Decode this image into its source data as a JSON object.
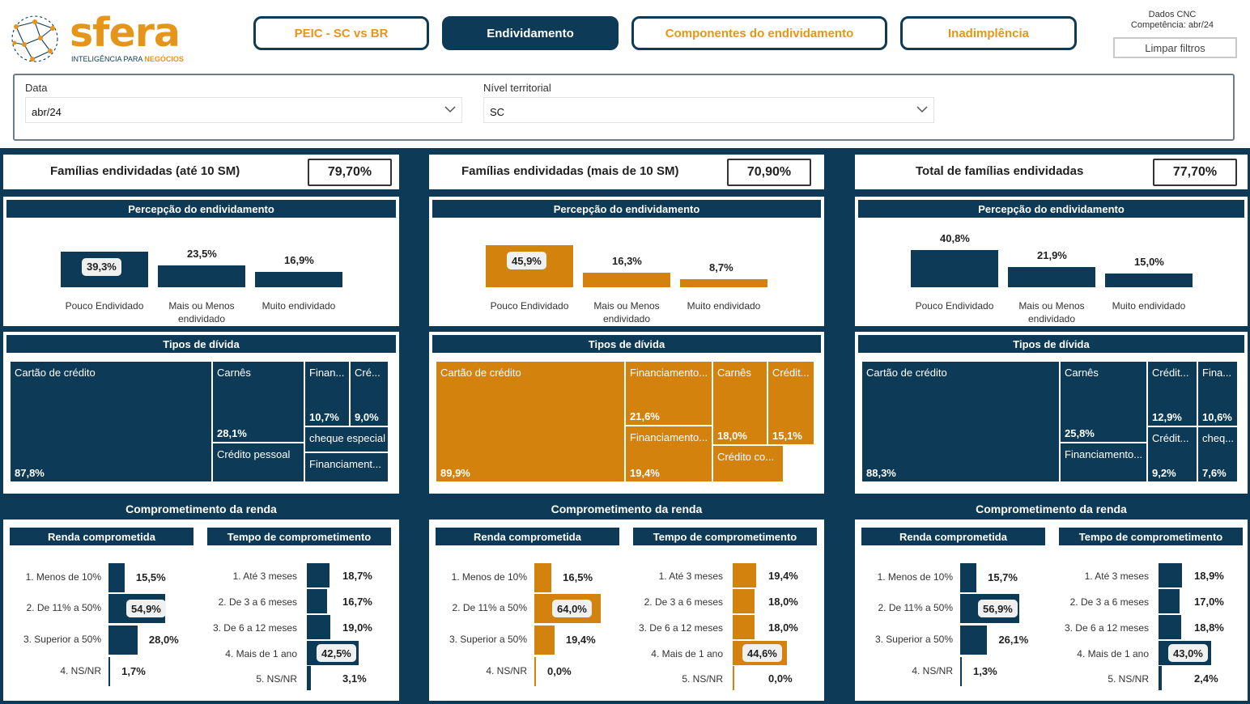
{
  "brand": {
    "name": "sfera",
    "tagline_a": "INTELIGÊNCIA PARA ",
    "tagline_b": "NEGÓCIOS"
  },
  "nav": [
    "PEIC - SC vs BR",
    "Endividamento",
    "Componentes do endividamento",
    "Inadimplência"
  ],
  "cnc": {
    "source": "Dados CNC",
    "competencia_label": "Competência:",
    "competencia_value": "abr/24"
  },
  "clear_label": "Limpar filtros",
  "filters": {
    "data_label": "Data",
    "data_value": "abr/24",
    "nivel_label": "Nível territorial",
    "nivel_value": "SC"
  },
  "colors": {
    "navy": "#0d3a56",
    "orange": "#d4820e"
  },
  "panels": [
    {
      "kpi_title": "Famílias endividadas (até 10 SM)",
      "kpi_value": "79,70%",
      "perc_title": "Percepção do endividamento",
      "perc": [
        {
          "label": "Pouco Endividado",
          "value": "39,3%",
          "num": 39.3
        },
        {
          "label": "Mais ou Menos endividado",
          "value": "23,5%",
          "num": 23.5
        },
        {
          "label": "Muito endividado",
          "value": "16,9%",
          "num": 16.9
        }
      ],
      "types_title": "Tipos de dívida",
      "types": [
        {
          "name": "Cartão de crédito",
          "value": "87,8%"
        },
        {
          "name": "Carnês",
          "value": "28,1%"
        },
        {
          "name": "Finan...",
          "value": "10,7%"
        },
        {
          "name": "Cré...",
          "value": "9,0%"
        },
        {
          "name": "cheque especial",
          "value": ""
        },
        {
          "name": "Crédito pessoal",
          "value": ""
        },
        {
          "name": "Financiament...",
          "value": ""
        }
      ],
      "comp_title": "Comprometimento da renda",
      "renda_title": "Renda comprometida",
      "tempo_title": "Tempo de comprometimento",
      "renda": [
        {
          "label": "1. Menos de 10%",
          "value": "15,5%",
          "num": 15.5
        },
        {
          "label": "2. De 11% a 50%",
          "value": "54,9%",
          "num": 54.9
        },
        {
          "label": "3. Superior a 50%",
          "value": "28,0%",
          "num": 28.0
        },
        {
          "label": "4. NS/NR",
          "value": "1,7%",
          "num": 1.7
        }
      ],
      "tempo": [
        {
          "label": "1. Até 3 meses",
          "value": "18,7%",
          "num": 18.7
        },
        {
          "label": "2. De 3 a 6 meses",
          "value": "16,7%",
          "num": 16.7
        },
        {
          "label": "3. De 6 a 12 meses",
          "value": "19,0%",
          "num": 19.0
        },
        {
          "label": "4. Mais de 1 ano",
          "value": "42,5%",
          "num": 42.5
        },
        {
          "label": "5. NS/NR",
          "value": "3,1%",
          "num": 3.1
        }
      ]
    },
    {
      "kpi_title": "Famílias endividadas (mais de 10 SM)",
      "kpi_value": "70,90%",
      "perc_title": "Percepção do endividamento",
      "perc": [
        {
          "label": "Pouco Endividado",
          "value": "45,9%",
          "num": 45.9
        },
        {
          "label": "Mais ou Menos endividado",
          "value": "16,3%",
          "num": 16.3
        },
        {
          "label": "Muito endividado",
          "value": "8,7%",
          "num": 8.7
        }
      ],
      "types_title": "Tipos de dívida",
      "types": [
        {
          "name": "Cartão de crédito",
          "value": "89,9%"
        },
        {
          "name": "Financiamento...",
          "value": "21,6%"
        },
        {
          "name": "Financiamento...",
          "value": "19,4%"
        },
        {
          "name": "Carnês",
          "value": "18,0%"
        },
        {
          "name": "Crédit...",
          "value": "15,1%"
        },
        {
          "name": "Crédito co...",
          "value": ""
        }
      ],
      "comp_title": "Comprometimento da renda",
      "renda_title": "Renda comprometida",
      "tempo_title": "Tempo de comprometimento",
      "renda": [
        {
          "label": "1. Menos de 10%",
          "value": "16,5%",
          "num": 16.5
        },
        {
          "label": "2. De 11% a 50%",
          "value": "64,0%",
          "num": 64.0
        },
        {
          "label": "3. Superior a 50%",
          "value": "19,4%",
          "num": 19.4
        },
        {
          "label": "4. NS/NR",
          "value": "0,0%",
          "num": 0.0
        }
      ],
      "tempo": [
        {
          "label": "1. Até 3 meses",
          "value": "19,4%",
          "num": 19.4
        },
        {
          "label": "2. De 3 a 6 meses",
          "value": "18,0%",
          "num": 18.0
        },
        {
          "label": "3. De 6 a 12 meses",
          "value": "18,0%",
          "num": 18.0
        },
        {
          "label": "4. Mais de 1 ano",
          "value": "44,6%",
          "num": 44.6
        },
        {
          "label": "5. NS/NR",
          "value": "0,0%",
          "num": 0.0
        }
      ]
    },
    {
      "kpi_title": "Total de famílias endividadas",
      "kpi_value": "77,70%",
      "perc_title": "Percepção do endividamento",
      "perc": [
        {
          "label": "Pouco Endividado",
          "value": "40,8%",
          "num": 40.8
        },
        {
          "label": "Mais ou Menos endividado",
          "value": "21,9%",
          "num": 21.9
        },
        {
          "label": "Muito endividado",
          "value": "15,0%",
          "num": 15.0
        }
      ],
      "types_title": "Tipos de dívida",
      "types": [
        {
          "name": "Cartão de crédito",
          "value": "88,3%"
        },
        {
          "name": "Carnês",
          "value": "25,8%"
        },
        {
          "name": "Crédit...",
          "value": "12,9%"
        },
        {
          "name": "Fina...",
          "value": "10,6%"
        },
        {
          "name": "Crédit...",
          "value": "9,2%"
        },
        {
          "name": "cheq...",
          "value": "7,6%"
        },
        {
          "name": "Financiamento...",
          "value": ""
        }
      ],
      "comp_title": "Comprometimento da renda",
      "renda_title": "Renda comprometida",
      "tempo_title": "Tempo de comprometimento",
      "renda": [
        {
          "label": "1. Menos de 10%",
          "value": "15,7%",
          "num": 15.7
        },
        {
          "label": "2. De 11% a 50%",
          "value": "56,9%",
          "num": 56.9
        },
        {
          "label": "3. Superior a 50%",
          "value": "26,1%",
          "num": 26.1
        },
        {
          "label": "4. NS/NR",
          "value": "1,3%",
          "num": 1.3
        }
      ],
      "tempo": [
        {
          "label": "1. Até 3 meses",
          "value": "18,9%",
          "num": 18.9
        },
        {
          "label": "2. De 3 a 6 meses",
          "value": "17,0%",
          "num": 17.0
        },
        {
          "label": "3. De 6 a 12 meses",
          "value": "18,8%",
          "num": 18.8
        },
        {
          "label": "4. Mais de 1 ano",
          "value": "43,0%",
          "num": 43.0
        },
        {
          "label": "5. NS/NR",
          "value": "2,4%",
          "num": 2.4
        }
      ]
    }
  ]
}
